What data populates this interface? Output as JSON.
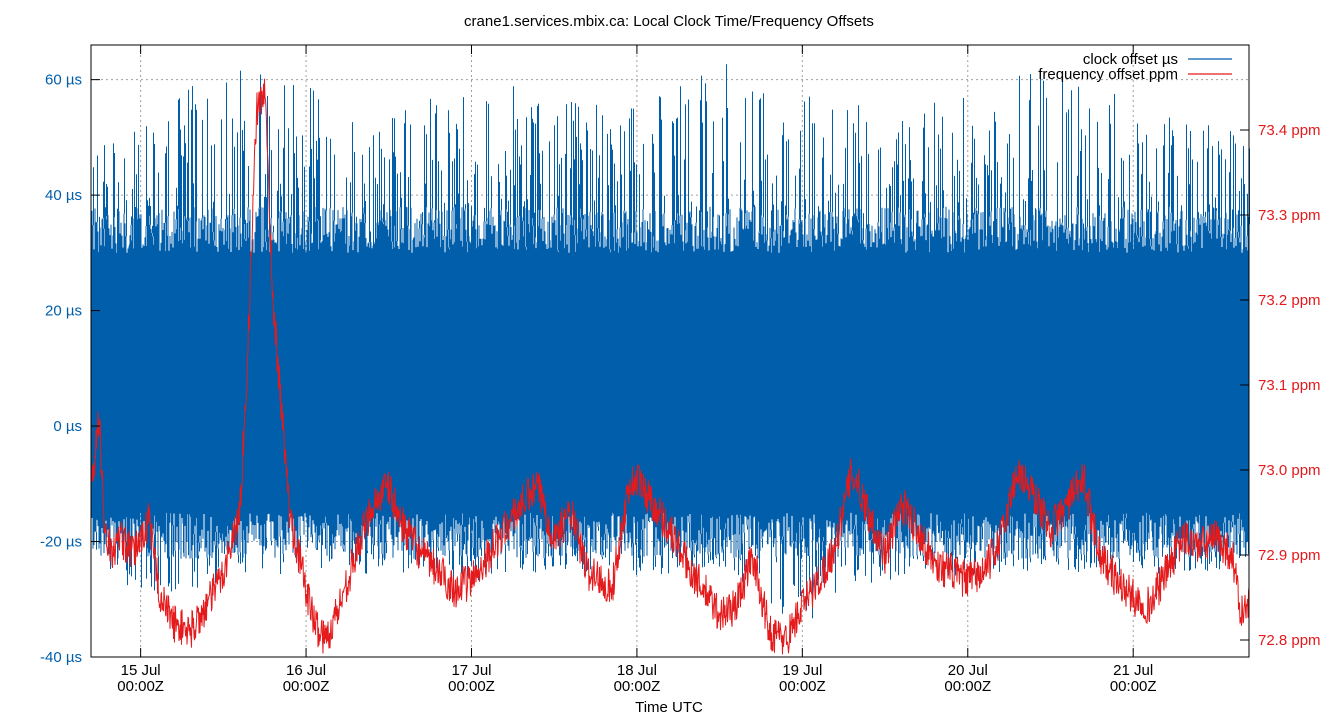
{
  "chart_data": {
    "type": "line",
    "title": "crane1.services.mbix.ca: Local Clock Time/Frequency Offsets",
    "xlabel": "Time UTC",
    "x_range_days": [
      14.7,
      21.7
    ],
    "x_ticks": [
      {
        "day": 15,
        "line1": "15 Jul",
        "line2": "00:00Z"
      },
      {
        "day": 16,
        "line1": "16 Jul",
        "line2": "00:00Z"
      },
      {
        "day": 17,
        "line1": "17 Jul",
        "line2": "00:00Z"
      },
      {
        "day": 18,
        "line1": "18 Jul",
        "line2": "00:00Z"
      },
      {
        "day": 19,
        "line1": "19 Jul",
        "line2": "00:00Z"
      },
      {
        "day": 20,
        "line1": "20 Jul",
        "line2": "00:00Z"
      },
      {
        "day": 21,
        "line1": "21 Jul",
        "line2": "00:00Z"
      }
    ],
    "y_left": {
      "range": [
        -40,
        66
      ],
      "ticks": [
        {
          "value": 60,
          "label": "60 µs"
        },
        {
          "value": 40,
          "label": "40 µs"
        },
        {
          "value": 20,
          "label": "20 µs"
        },
        {
          "value": 0,
          "label": "0 µs"
        },
        {
          "value": -20,
          "label": "-20 µs"
        },
        {
          "value": -40,
          "label": "-40 µs"
        }
      ]
    },
    "y_right": {
      "range": [
        72.78,
        73.5
      ],
      "ticks": [
        {
          "value": 73.4,
          "label": "73.4 ppm"
        },
        {
          "value": 73.3,
          "label": "73.3 ppm"
        },
        {
          "value": 73.2,
          "label": "73.2 ppm"
        },
        {
          "value": 73.1,
          "label": "73.1 ppm"
        },
        {
          "value": 73.0,
          "label": "73.0 ppm"
        },
        {
          "value": 72.9,
          "label": "72.9 ppm"
        },
        {
          "value": 72.8,
          "label": "72.8 ppm"
        }
      ]
    },
    "grid": true,
    "legend_position": "top-right",
    "series": [
      {
        "name": "clock offset µs",
        "axis": "left",
        "color": "#005eab",
        "band_typical": [
          -15,
          30
        ],
        "x": [
          14.7,
          15.0,
          15.5,
          16.0,
          16.5,
          17.0,
          17.5,
          18.0,
          18.5,
          19.0,
          19.5,
          20.0,
          20.5,
          21.0,
          21.5,
          21.7
        ],
        "y_max": [
          48,
          55,
          62,
          60,
          56,
          58,
          60,
          55,
          65,
          60,
          55,
          58,
          66,
          55,
          52,
          50
        ],
        "y_min": [
          -25,
          -30,
          -28,
          -25,
          -26,
          -27,
          -25,
          -26,
          -25,
          -35,
          -27,
          -27,
          -25,
          -26,
          -25,
          -30
        ]
      },
      {
        "name": "frequency offset ppm",
        "axis": "right",
        "color": "#e41a1c",
        "x": [
          14.7,
          14.75,
          14.78,
          14.82,
          14.88,
          14.95,
          15.05,
          15.12,
          15.2,
          15.3,
          15.4,
          15.5,
          15.6,
          15.65,
          15.7,
          15.75,
          15.8,
          15.9,
          16.0,
          16.05,
          16.12,
          16.2,
          16.3,
          16.4,
          16.5,
          16.55,
          16.6,
          16.7,
          16.8,
          16.9,
          17.0,
          17.1,
          17.2,
          17.3,
          17.4,
          17.5,
          17.6,
          17.7,
          17.8,
          17.85,
          17.95,
          18.0,
          18.1,
          18.2,
          18.3,
          18.4,
          18.5,
          18.6,
          18.7,
          18.8,
          18.9,
          19.0,
          19.1,
          19.2,
          19.3,
          19.4,
          19.5,
          19.6,
          19.7,
          19.8,
          19.9,
          20.0,
          20.1,
          20.2,
          20.3,
          20.4,
          20.5,
          20.6,
          20.7,
          20.8,
          20.9,
          21.0,
          21.1,
          21.2,
          21.3,
          21.4,
          21.5,
          21.6,
          21.65,
          21.7
        ],
        "values": [
          72.98,
          73.06,
          72.94,
          72.9,
          72.92,
          72.9,
          72.94,
          72.85,
          72.82,
          72.81,
          72.84,
          72.88,
          72.95,
          73.15,
          73.42,
          73.45,
          73.2,
          72.95,
          72.86,
          72.82,
          72.8,
          72.84,
          72.9,
          72.96,
          72.98,
          72.95,
          72.93,
          72.9,
          72.88,
          72.86,
          72.87,
          72.9,
          72.93,
          72.96,
          72.98,
          72.92,
          72.95,
          72.88,
          72.87,
          72.86,
          72.98,
          72.99,
          72.96,
          72.93,
          72.89,
          72.86,
          72.83,
          72.84,
          72.9,
          72.81,
          72.8,
          72.84,
          72.87,
          72.91,
          73.0,
          72.95,
          72.9,
          72.96,
          72.93,
          72.89,
          72.88,
          72.87,
          72.88,
          72.92,
          73.0,
          72.97,
          72.93,
          72.96,
          72.99,
          72.9,
          72.87,
          72.85,
          72.84,
          72.88,
          72.92,
          72.91,
          72.92,
          72.9,
          72.83,
          72.84
        ]
      }
    ]
  }
}
